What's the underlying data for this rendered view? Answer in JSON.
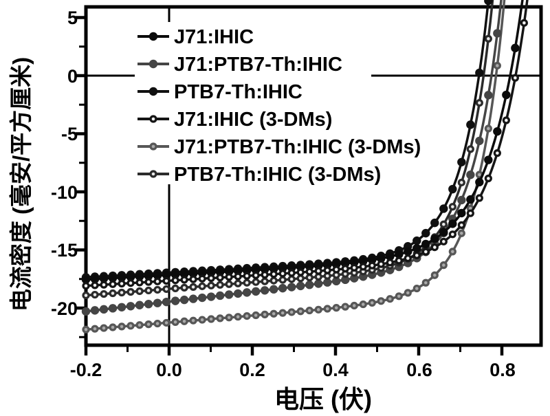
{
  "chart_data": {
    "type": "line",
    "title": "",
    "xlabel": "电压 (伏)",
    "ylabel": "电流密度 (毫安/平方厘米)",
    "x_unit": "V",
    "y_unit": "mA/cm2",
    "xlim": [
      -0.2,
      0.895
    ],
    "ylim": [
      -23.2,
      5.9
    ],
    "grid": false,
    "legend_position": "upper-left-inside",
    "x_tick_labels": [
      "-0.2",
      "0.0",
      "0.2",
      "0.4",
      "0.6",
      "0.8"
    ],
    "x_tick_values": [
      -0.2,
      0.0,
      0.2,
      0.4,
      0.6,
      0.8
    ],
    "y_tick_labels": [
      "5",
      "0",
      "-5",
      "-10",
      "-15",
      "-20"
    ],
    "y_tick_values": [
      5,
      0,
      -5,
      -10,
      -15,
      -20
    ],
    "axes": {
      "minor_x_ticks": [
        -0.1,
        0.1,
        0.3,
        0.5,
        0.7
      ],
      "minor_y_ticks": [
        2.5,
        -2.5,
        -7.5,
        -12.5,
        -17.5,
        -22.5
      ],
      "zero_lines": true
    },
    "marker_step_V": 0.0215,
    "series": [
      {
        "name": "J71:IHIC",
        "line_color": "#0b0b0b",
        "marker": "filled-circle",
        "marker_center_color": "#0b0b0b",
        "jsc_mA_cm2": 17.15,
        "j_at_minus0p2": -17.55,
        "voc_V": 0.82,
        "tilt_mA_per_V": 2.0,
        "knee_width_V": 0.085
      },
      {
        "name": "J71:PTB7-Th:IHIC",
        "line_color": "#454545",
        "marker": "filled-circle",
        "marker_center_color": "#454545",
        "jsc_mA_cm2": 19.45,
        "j_at_minus0p2": -20.29,
        "voc_V": 0.775,
        "tilt_mA_per_V": 4.2,
        "knee_width_V": 0.07
      },
      {
        "name": "PTB7-Th:IHIC",
        "line_color": "#101010",
        "marker": "filled-circle",
        "marker_center_color": "#101010",
        "jsc_mA_cm2": 16.95,
        "j_at_minus0p2": -17.35,
        "voc_V": 0.745,
        "tilt_mA_per_V": 2.0,
        "knee_width_V": 0.065
      },
      {
        "name": "J71:IHIC (3-DMs)",
        "line_color": "#151515",
        "marker": "open-circle",
        "marker_center_color": "#f2f2f2",
        "jsc_mA_cm2": 17.65,
        "j_at_minus0p2": -18.09,
        "voc_V": 0.833,
        "tilt_mA_per_V": 2.2,
        "knee_width_V": 0.082
      },
      {
        "name": "J71:PTB7-Th:IHIC (3-DMs)",
        "line_color": "#575757",
        "marker": "open-circle",
        "marker_center_color": "#aaaaaa",
        "jsc_mA_cm2": 21.25,
        "j_at_minus0p2": -21.85,
        "voc_V": 0.786,
        "tilt_mA_per_V": 3.0,
        "knee_width_V": 0.068
      },
      {
        "name": "PTB7-Th:IHIC (3-DMs)",
        "line_color": "#2b2b2b",
        "marker": "open-circle",
        "marker_center_color": "#e9e9e9",
        "jsc_mA_cm2": 18.35,
        "j_at_minus0p2": -18.91,
        "voc_V": 0.756,
        "tilt_mA_per_V": 2.8,
        "knee_width_V": 0.065
      }
    ]
  }
}
